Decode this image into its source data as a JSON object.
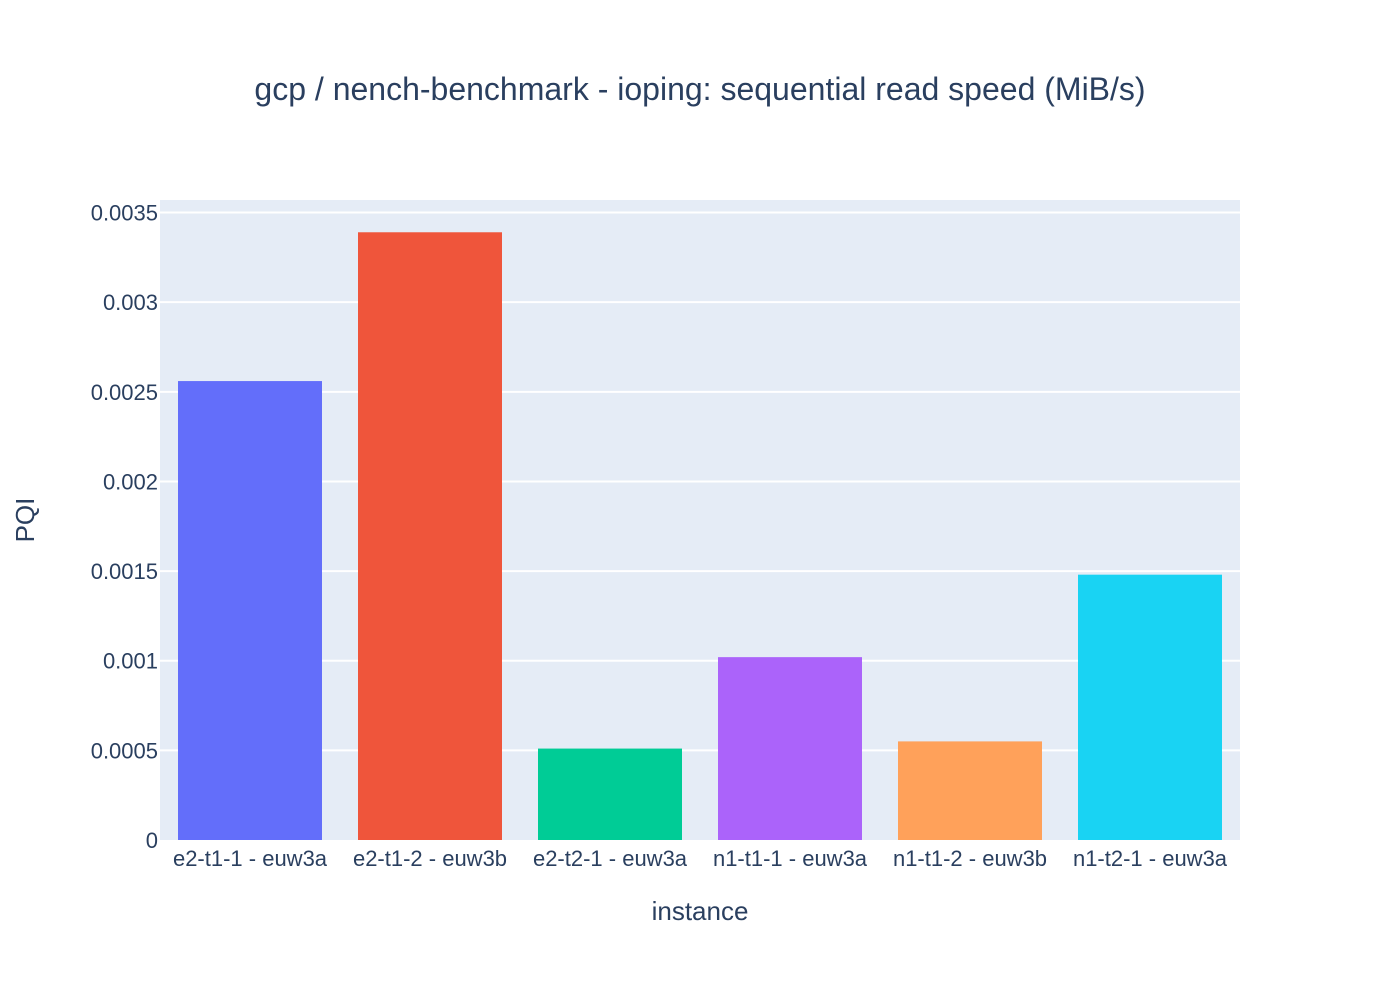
{
  "chart_data": {
    "type": "bar",
    "title": "gcp / nench-benchmark - ioping: sequential read speed (MiB/s)",
    "xlabel": "instance",
    "ylabel": "PQI",
    "categories": [
      "e2-t1-1 - euw3a",
      "e2-t1-2 - euw3b",
      "e2-t2-1 - euw3a",
      "n1-t1-1 - euw3a",
      "n1-t1-2 - euw3b",
      "n1-t2-1 - euw3a"
    ],
    "values": [
      0.00256,
      0.00339,
      0.00051,
      0.00102,
      0.00055,
      0.00148
    ],
    "colors": [
      "#636efa",
      "#ef553b",
      "#00cc96",
      "#ab63fa",
      "#ffa15a",
      "#19d3f3"
    ],
    "ylim": [
      0,
      0.0035
    ],
    "yticks": [
      0,
      0.0005,
      0.001,
      0.0015,
      0.002,
      0.0025,
      0.003,
      0.0035
    ],
    "ytick_labels": [
      "0",
      "0.0005",
      "0.001",
      "0.0015",
      "0.002",
      "0.0025",
      "0.003",
      "0.0035"
    ],
    "grid": true,
    "legend": false,
    "plot_background": "#e5ecf6",
    "gridline_color": "#ffffff",
    "text_color": "#2a3f5f"
  }
}
